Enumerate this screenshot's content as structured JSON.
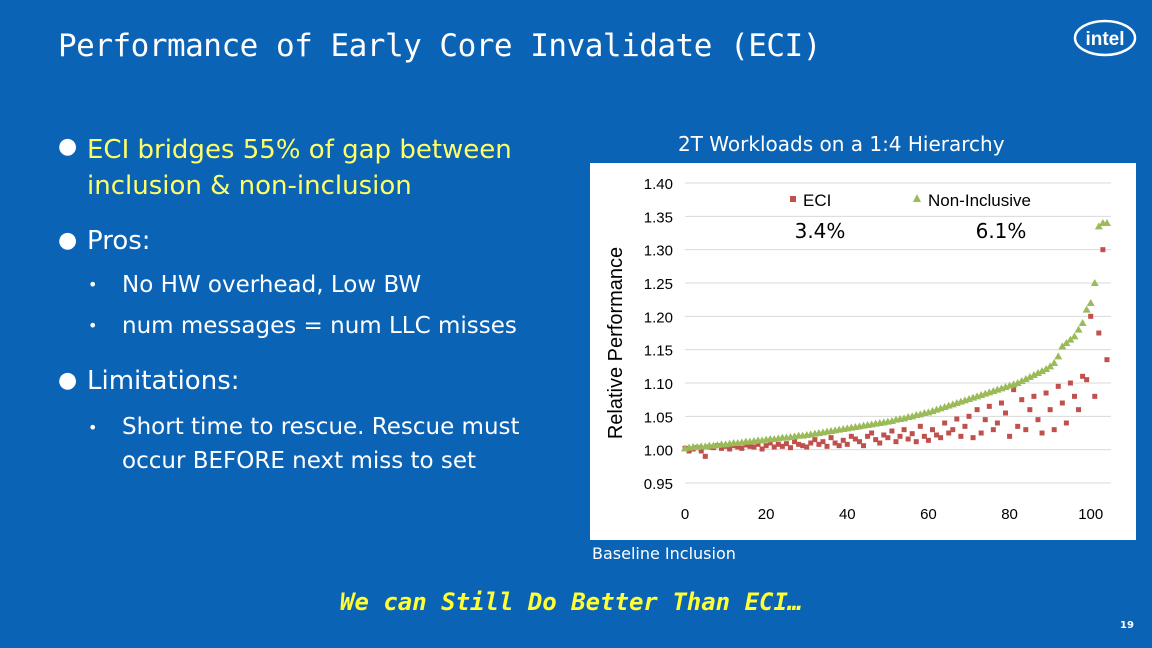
{
  "slide": {
    "title": "Performance of Early Core Invalidate (ECI)",
    "logo_text": "intel",
    "page_number": "19",
    "bottom_text": "We can Still Do Better Than ECI…"
  },
  "bullets": {
    "b1_line1": "ECI bridges 55% of gap between",
    "b1_line2": "inclusion & non-inclusion",
    "pros": "Pros:",
    "pros_1": "No HW overhead, Low BW",
    "pros_2": "num messages = num LLC misses",
    "limitations": "Limitations:",
    "lim_1_line1": "Short time to rescue. Rescue must",
    "lim_1_line2": "occur BEFORE next miss to set"
  },
  "chart_caption": {
    "title": "2T Workloads on a 1:4 Hierarchy",
    "xlabel": "Baseline Inclusion"
  },
  "chart_data": {
    "type": "scatter",
    "title": "2T Workloads on a 1:4 Hierarchy",
    "xlabel": "Baseline Inclusion",
    "ylabel": "Relative Performance",
    "xlim": [
      0,
      105
    ],
    "ylim": [
      0.95,
      1.4
    ],
    "x_ticks": [
      "0",
      "20",
      "40",
      "60",
      "80",
      "100"
    ],
    "y_ticks": [
      "0.95",
      "1.00",
      "1.05",
      "1.10",
      "1.15",
      "1.20",
      "1.25",
      "1.30",
      "1.35",
      "1.40"
    ],
    "legend_position": "top-right",
    "annotations": [
      "3.4%",
      "6.1%"
    ],
    "colors": {
      "eci": "#c0504d",
      "noninclusive": "#9bbb59"
    },
    "series": [
      {
        "name": "ECI",
        "x": [
          0,
          1,
          2,
          3,
          4,
          5,
          6,
          7,
          8,
          9,
          10,
          11,
          12,
          13,
          14,
          15,
          16,
          17,
          18,
          19,
          20,
          21,
          22,
          23,
          24,
          25,
          26,
          27,
          28,
          29,
          30,
          31,
          32,
          33,
          34,
          35,
          36,
          37,
          38,
          39,
          40,
          41,
          42,
          43,
          44,
          45,
          46,
          47,
          48,
          49,
          50,
          51,
          52,
          53,
          54,
          55,
          56,
          57,
          58,
          59,
          60,
          61,
          62,
          63,
          64,
          65,
          66,
          67,
          68,
          69,
          70,
          71,
          72,
          73,
          74,
          75,
          76,
          77,
          78,
          79,
          80,
          81,
          82,
          83,
          84,
          85,
          86,
          87,
          88,
          89,
          90,
          91,
          92,
          93,
          94,
          95,
          96,
          97,
          98,
          99,
          100,
          101,
          102,
          103,
          104
        ],
        "y": [
          1.002,
          0.998,
          1.001,
          1.003,
          0.998,
          0.99,
          1.004,
          1.003,
          1.006,
          1.002,
          1.005,
          1.001,
          1.006,
          1.004,
          1.002,
          1.007,
          1.005,
          1.004,
          1.008,
          1.001,
          1.006,
          1.01,
          1.004,
          1.008,
          1.005,
          1.009,
          1.003,
          1.012,
          1.008,
          1.006,
          1.004,
          1.01,
          1.015,
          1.008,
          1.012,
          1.005,
          1.018,
          1.01,
          1.006,
          1.014,
          1.008,
          1.02,
          1.016,
          1.012,
          1.006,
          1.02,
          1.025,
          1.015,
          1.01,
          1.022,
          1.018,
          1.028,
          1.012,
          1.02,
          1.03,
          1.016,
          1.024,
          1.012,
          1.035,
          1.02,
          1.014,
          1.03,
          1.022,
          1.018,
          1.04,
          1.025,
          1.03,
          1.046,
          1.02,
          1.035,
          1.05,
          1.018,
          1.06,
          1.025,
          1.045,
          1.065,
          1.03,
          1.04,
          1.07,
          1.055,
          1.02,
          1.09,
          1.035,
          1.075,
          1.03,
          1.06,
          1.08,
          1.045,
          1.025,
          1.085,
          1.06,
          1.03,
          1.095,
          1.07,
          1.04,
          1.1,
          1.08,
          1.06,
          1.11,
          1.105,
          1.2,
          1.08,
          1.175,
          1.3,
          1.135
        ]
      },
      {
        "name": "Non-Inclusive",
        "x": [
          0,
          1,
          2,
          3,
          4,
          5,
          6,
          7,
          8,
          9,
          10,
          11,
          12,
          13,
          14,
          15,
          16,
          17,
          18,
          19,
          20,
          21,
          22,
          23,
          24,
          25,
          26,
          27,
          28,
          29,
          30,
          31,
          32,
          33,
          34,
          35,
          36,
          37,
          38,
          39,
          40,
          41,
          42,
          43,
          44,
          45,
          46,
          47,
          48,
          49,
          50,
          51,
          52,
          53,
          54,
          55,
          56,
          57,
          58,
          59,
          60,
          61,
          62,
          63,
          64,
          65,
          66,
          67,
          68,
          69,
          70,
          71,
          72,
          73,
          74,
          75,
          76,
          77,
          78,
          79,
          80,
          81,
          82,
          83,
          84,
          85,
          86,
          87,
          88,
          89,
          90,
          91,
          92,
          93,
          94,
          95,
          96,
          97,
          98,
          99,
          100,
          101,
          102,
          103,
          104
        ],
        "y": [
          1.002,
          1.003,
          1.004,
          1.004,
          1.005,
          1.005,
          1.006,
          1.006,
          1.007,
          1.008,
          1.008,
          1.009,
          1.01,
          1.01,
          1.011,
          1.012,
          1.012,
          1.013,
          1.014,
          1.014,
          1.015,
          1.016,
          1.016,
          1.017,
          1.018,
          1.018,
          1.019,
          1.02,
          1.021,
          1.021,
          1.022,
          1.023,
          1.024,
          1.025,
          1.026,
          1.027,
          1.028,
          1.029,
          1.03,
          1.031,
          1.032,
          1.033,
          1.034,
          1.035,
          1.036,
          1.037,
          1.038,
          1.039,
          1.04,
          1.041,
          1.042,
          1.043,
          1.045,
          1.046,
          1.047,
          1.049,
          1.05,
          1.052,
          1.053,
          1.055,
          1.056,
          1.058,
          1.06,
          1.062,
          1.064,
          1.066,
          1.068,
          1.07,
          1.072,
          1.074,
          1.076,
          1.078,
          1.08,
          1.082,
          1.084,
          1.086,
          1.088,
          1.09,
          1.092,
          1.094,
          1.096,
          1.098,
          1.1,
          1.103,
          1.106,
          1.109,
          1.112,
          1.115,
          1.118,
          1.121,
          1.125,
          1.13,
          1.14,
          1.155,
          1.16,
          1.165,
          1.17,
          1.18,
          1.19,
          1.21,
          1.22,
          1.25,
          1.335,
          1.34,
          1.34
        ]
      }
    ]
  }
}
